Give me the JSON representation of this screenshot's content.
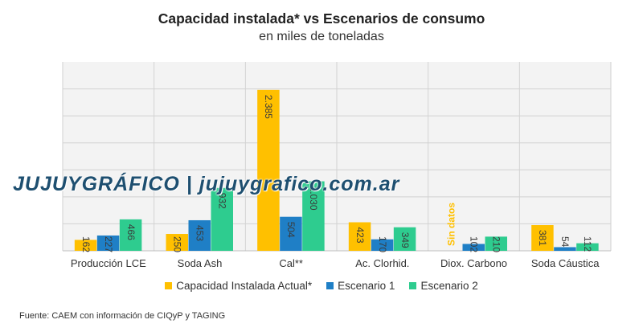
{
  "chart_data": {
    "type": "bar",
    "title": "Capacidad instalada* vs Escenarios de consumo",
    "subtitle": "en miles de toneladas",
    "categories": [
      "Producción LCE",
      "Soda Ash",
      "Cal**",
      "Ac. Clorhid.",
      "Diox. Carbono",
      "Soda Cáustica"
    ],
    "series": [
      {
        "name": "Capacidad Instalada Actual*",
        "color": "#FFC000",
        "values": [
          162,
          250,
          2385,
          423,
          null,
          381
        ],
        "labels": [
          "162",
          "250",
          "2.385",
          "423",
          "Sin datos",
          "381"
        ]
      },
      {
        "name": "Escenario 1",
        "color": "#1F7FC6",
        "values": [
          227,
          453,
          504,
          170,
          102,
          54
        ],
        "labels": [
          "227",
          "453",
          "504",
          "170",
          "102",
          "54"
        ]
      },
      {
        "name": "Escenario 2",
        "color": "#2ECC8F",
        "values": [
          466,
          932,
          1030,
          349,
          210,
          112
        ],
        "labels": [
          "466",
          "932",
          "1.030",
          "349",
          "210",
          "112"
        ]
      }
    ],
    "ylim": [
      0,
      2800
    ],
    "grid": true,
    "legend_position": "bottom"
  },
  "watermark": "JUJUYGRÁFICO | jujuygrafico.com.ar",
  "source": "Fuente: CAEM con información de CIQyP y TAGING"
}
